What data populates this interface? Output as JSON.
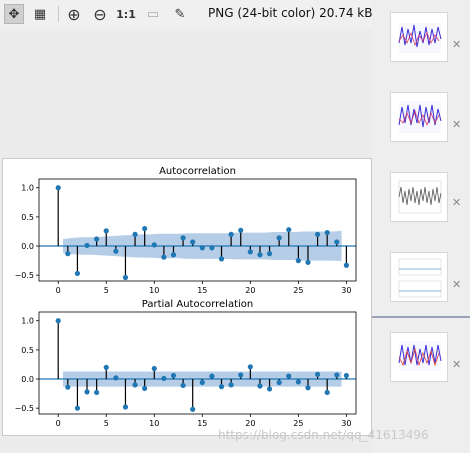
{
  "toolbar": {
    "buttons": [
      {
        "name": "fit-view-icon",
        "glyph": "✥",
        "selected": true
      },
      {
        "name": "grid-icon",
        "glyph": "▦",
        "selected": false
      },
      {
        "name": "zoom-in-icon",
        "glyph": "⊕",
        "selected": false
      },
      {
        "name": "zoom-out-icon",
        "glyph": "⊖",
        "selected": false
      },
      {
        "name": "actual-size-button",
        "glyph": "1:1",
        "selected": false
      },
      {
        "name": "image-icon",
        "glyph": "▭",
        "selected": false
      },
      {
        "name": "eyedropper-icon",
        "glyph": "✎",
        "selected": false
      }
    ],
    "info": "PNG (24-bit color) 20.74 kB"
  },
  "thumbnails": [
    "thumbnail-1",
    "thumbnail-2",
    "thumbnail-3",
    "thumbnail-4",
    "thumbnail-5"
  ],
  "watermark": "https://blog.csdn.net/qq_41613496",
  "colors": {
    "stem": "#1f77b4",
    "band": "#a9c4e3",
    "zero": "#1f77b4"
  },
  "chart_data": [
    {
      "type": "scatter",
      "title": "Autocorrelation",
      "xlim": [
        -2,
        31
      ],
      "ylim": [
        -0.6,
        1.15
      ],
      "xticks": [
        0,
        5,
        10,
        15,
        20,
        25,
        30
      ],
      "yticks": [
        1.0,
        0.5,
        0.0,
        -0.5
      ],
      "ytick_labels": [
        "1.0",
        "0.5",
        "0.0",
        "−0.5"
      ],
      "x": [
        0,
        1,
        2,
        3,
        4,
        5,
        6,
        7,
        8,
        9,
        10,
        11,
        12,
        13,
        14,
        15,
        16,
        17,
        18,
        19,
        20,
        21,
        22,
        23,
        24,
        25,
        26,
        27,
        28,
        29,
        30
      ],
      "values": [
        1.0,
        -0.13,
        -0.47,
        0.01,
        0.12,
        0.26,
        -0.09,
        -0.54,
        0.2,
        0.3,
        0.02,
        -0.19,
        -0.15,
        0.14,
        0.07,
        -0.03,
        -0.03,
        -0.22,
        0.2,
        0.27,
        -0.1,
        -0.15,
        -0.13,
        0.14,
        0.28,
        -0.25,
        -0.28,
        0.2,
        0.23,
        0.07,
        -0.33
      ],
      "confidence_band": [
        0.12,
        0.14,
        0.15,
        0.15,
        0.16,
        0.17,
        0.18,
        0.19,
        0.2,
        0.2,
        0.21,
        0.21,
        0.21,
        0.22,
        0.22,
        0.22,
        0.22,
        0.22,
        0.23,
        0.23,
        0.23,
        0.23,
        0.24,
        0.24,
        0.24,
        0.25,
        0.25,
        0.25,
        0.25,
        0.26
      ]
    },
    {
      "type": "scatter",
      "title": "Partial Autocorrelation",
      "xlim": [
        -2,
        31
      ],
      "ylim": [
        -0.6,
        1.15
      ],
      "xticks": [
        0,
        5,
        10,
        15,
        20,
        25,
        30
      ],
      "yticks": [
        1.0,
        0.5,
        0.0,
        -0.5
      ],
      "ytick_labels": [
        "1.0",
        "0.5",
        "0.0",
        "−0.5"
      ],
      "x": [
        0,
        1,
        2,
        3,
        4,
        5,
        6,
        7,
        8,
        9,
        10,
        11,
        12,
        13,
        14,
        15,
        16,
        17,
        18,
        19,
        20,
        21,
        22,
        23,
        24,
        25,
        26,
        27,
        28,
        29,
        30
      ],
      "values": [
        1.0,
        -0.14,
        -0.5,
        -0.22,
        -0.23,
        0.2,
        0.02,
        -0.48,
        -0.1,
        -0.16,
        0.18,
        0.01,
        0.06,
        -0.11,
        -0.52,
        -0.06,
        0.05,
        -0.13,
        -0.1,
        0.07,
        0.21,
        -0.12,
        -0.17,
        -0.06,
        0.05,
        -0.05,
        -0.15,
        0.08,
        -0.23,
        0.07,
        0.06
      ],
      "confidence_band": [
        0.13,
        0.13,
        0.13,
        0.13,
        0.13,
        0.13,
        0.13,
        0.13,
        0.13,
        0.13,
        0.13,
        0.13,
        0.13,
        0.13,
        0.13,
        0.13,
        0.13,
        0.13,
        0.13,
        0.13,
        0.13,
        0.13,
        0.13,
        0.13,
        0.13,
        0.13,
        0.13,
        0.13,
        0.13,
        0.13
      ]
    }
  ]
}
